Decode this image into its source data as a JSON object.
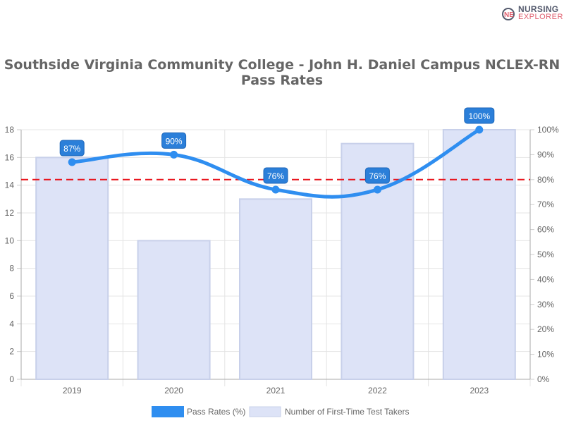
{
  "logo": {
    "line1": "NURSING",
    "line2": "EXPLORER"
  },
  "title": "Southside Virginia Community College - John H. Daniel Campus NCLEX-RN Pass Rates",
  "chart_data": {
    "type": "bar+line",
    "categories": [
      "2019",
      "2020",
      "2021",
      "2022",
      "2023"
    ],
    "series": [
      {
        "name": "Pass Rates (%)",
        "type": "line",
        "axis": "right",
        "values": [
          87,
          90,
          76,
          76,
          100
        ],
        "labels": [
          "87%",
          "90%",
          "76%",
          "76%",
          "100%"
        ],
        "color": "#2f8ef0"
      },
      {
        "name": "Number of First-Time Test Takers",
        "type": "bar",
        "axis": "left",
        "values": [
          16,
          10,
          13,
          17,
          18
        ],
        "color": "#dde3f7"
      }
    ],
    "reference_line": {
      "value": 80,
      "axis": "right",
      "color": "#e8131b",
      "style": "dashed"
    },
    "left_axis": {
      "ylim": [
        0,
        18
      ],
      "ticks": [
        "0",
        "2",
        "4",
        "6",
        "8",
        "10",
        "12",
        "14",
        "16",
        "18"
      ]
    },
    "right_axis": {
      "ylim": [
        0,
        100
      ],
      "ticks": [
        "0%",
        "10%",
        "20%",
        "30%",
        "40%",
        "50%",
        "60%",
        "70%",
        "80%",
        "90%",
        "100%"
      ]
    },
    "grid": true,
    "legend": "bottom"
  }
}
